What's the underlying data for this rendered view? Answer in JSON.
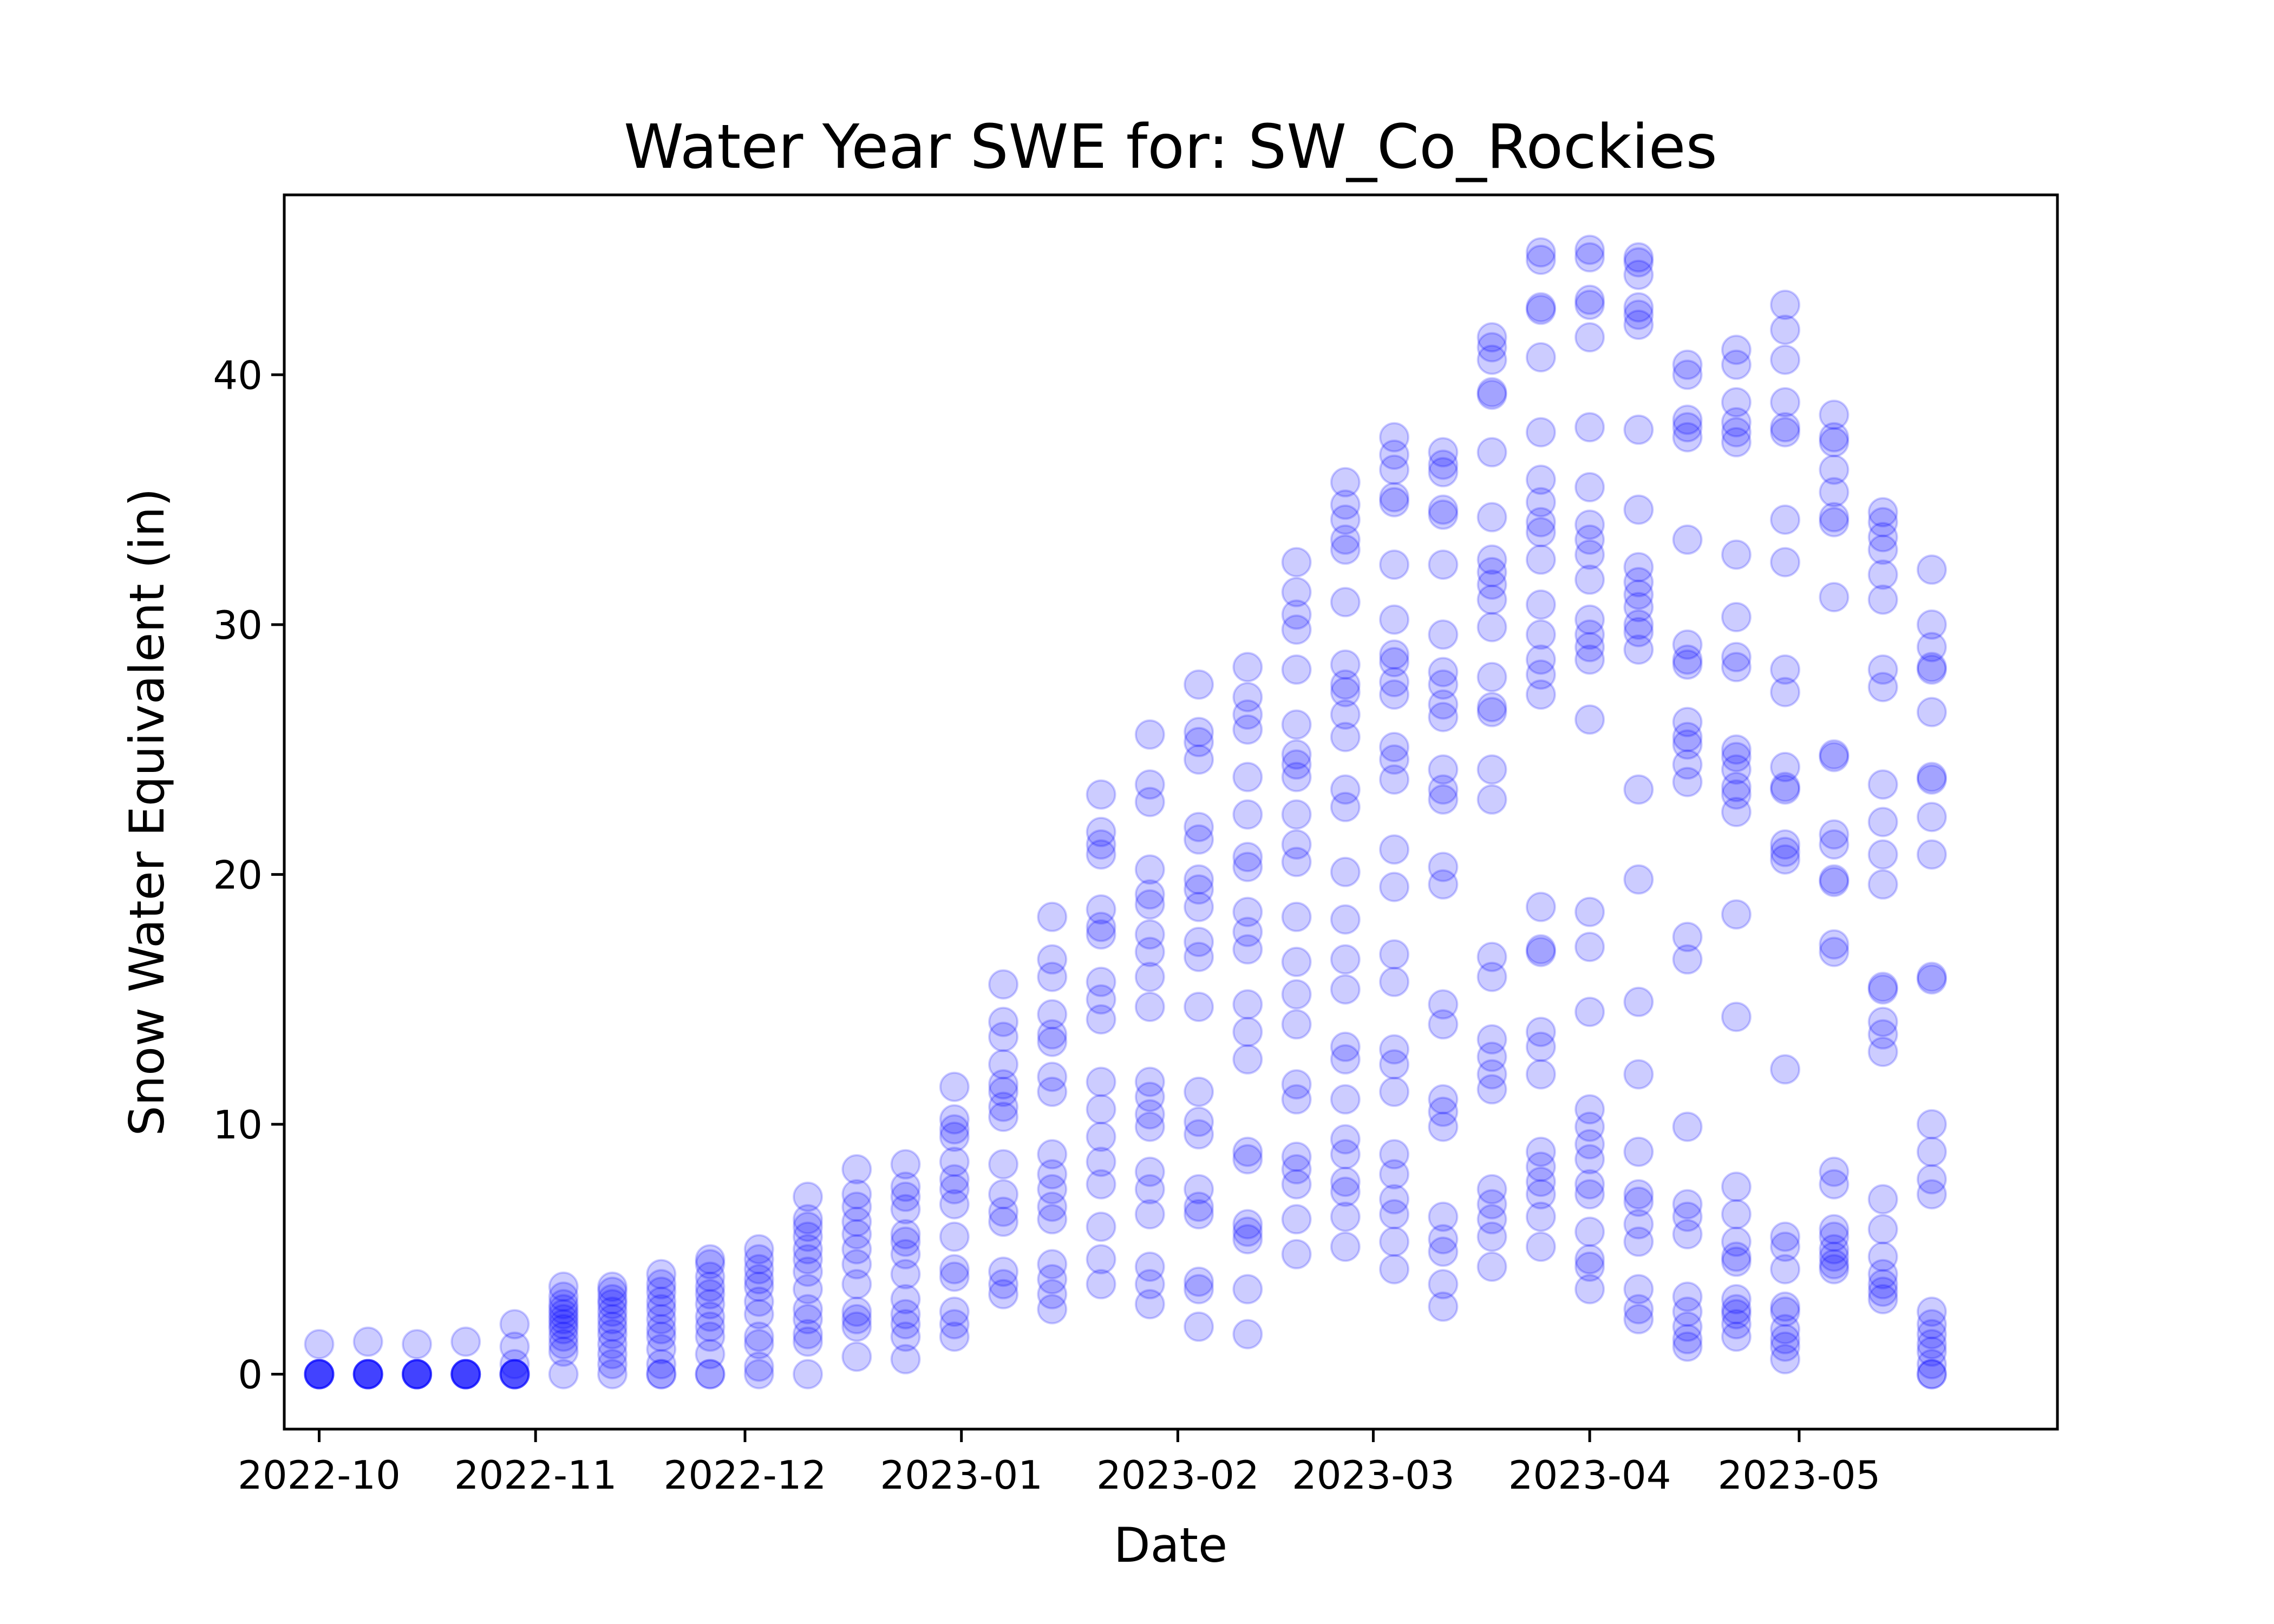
{
  "chart_data": {
    "type": "scatter",
    "title": "Water Year SWE for: SW_Co_Rockies",
    "xlabel": "Date",
    "ylabel": "Snow Water Equivalent (in)",
    "x_axis": "date",
    "xlim": [
      "2022-09-26",
      "2023-06-07"
    ],
    "ylim": [
      -2.2,
      47.2
    ],
    "x_ticks": [
      "2022-10",
      "2022-11",
      "2022-12",
      "2023-01",
      "2023-02",
      "2023-03",
      "2023-04",
      "2023-05"
    ],
    "x_tick_dates": [
      "2022-10-01",
      "2022-11-01",
      "2022-12-01",
      "2023-01-01",
      "2023-02-01",
      "2023-03-01",
      "2023-04-01",
      "2023-05-01"
    ],
    "y_ticks": [
      0,
      10,
      20,
      30,
      40
    ],
    "grid": false,
    "legend": "none",
    "marker_color": "#0000ff",
    "marker_alpha": 0.2,
    "series": [
      {
        "points": [
          {
            "x": "2022-10-01",
            "y": [
              0,
              0,
              0,
              0,
              0,
              0,
              1.2
            ]
          },
          {
            "x": "2022-10-08",
            "y": [
              0,
              0,
              0,
              0,
              0,
              0,
              1.3
            ]
          },
          {
            "x": "2022-10-15",
            "y": [
              0,
              0,
              0,
              0,
              0,
              0,
              1.2
            ]
          },
          {
            "x": "2022-10-22",
            "y": [
              0,
              0,
              0,
              0,
              0,
              0,
              1.3
            ]
          },
          {
            "x": "2022-10-29",
            "y": [
              0,
              0,
              0,
              0,
              0,
              0.4,
              1.1,
              2.0
            ]
          },
          {
            "x": "2022-11-05",
            "y": [
              0,
              0.9,
              1.2,
              1.5,
              1.8,
              2.0,
              2.2,
              2.4,
              2.6,
              2.8,
              3.1,
              3.5
            ]
          },
          {
            "x": "2022-11-12",
            "y": [
              0,
              0.4,
              0.8,
              1.2,
              1.6,
              1.9,
              2.2,
              2.5,
              2.8,
              3.0,
              3.3,
              3.5
            ]
          },
          {
            "x": "2022-11-19",
            "y": [
              0,
              0,
              0.4,
              1.0,
              1.5,
              1.8,
              2.2,
              2.6,
              2.9,
              3.3,
              3.6,
              4.0
            ]
          },
          {
            "x": "2022-11-26",
            "y": [
              0,
              0,
              0.8,
              1.5,
              1.9,
              2.3,
              2.8,
              3.2,
              3.5,
              3.9,
              4.4,
              4.6
            ]
          },
          {
            "x": "2022-12-03",
            "y": [
              0,
              0.3,
              1.2,
              1.5,
              2.4,
              2.9,
              3.5,
              3.8,
              4.2,
              4.6,
              5.0
            ]
          },
          {
            "x": "2022-12-10",
            "y": [
              0,
              1.3,
              1.6,
              2.2,
              2.6,
              3.4,
              4.1,
              4.6,
              5.0,
              5.5,
              5.9,
              6.2,
              7.1
            ]
          },
          {
            "x": "2022-12-17",
            "y": [
              0.7,
              1.9,
              2.2,
              2.5,
              3.6,
              4.4,
              5.0,
              5.6,
              6.1,
              6.7,
              7.2,
              8.2
            ]
          },
          {
            "x": "2022-12-24",
            "y": [
              0.6,
              1.5,
              2.0,
              2.4,
              3.0,
              4.0,
              4.8,
              5.3,
              5.6,
              6.6,
              7.1,
              7.5,
              8.4
            ]
          },
          {
            "x": "2022-12-31",
            "y": [
              1.5,
              2.0,
              2.5,
              3.9,
              4.2,
              5.5,
              6.8,
              7.4,
              7.8,
              8.5,
              9.5,
              9.8,
              10.2,
              11.5
            ]
          },
          {
            "x": "2023-01-07",
            "y": [
              3.2,
              3.6,
              4.1,
              6.1,
              6.5,
              7.2,
              8.4,
              10.3,
              10.7,
              11.3,
              11.6,
              12.4,
              13.5,
              14.1,
              15.6
            ]
          },
          {
            "x": "2023-01-14",
            "y": [
              2.6,
              3.2,
              3.8,
              4.4,
              6.2,
              6.7,
              7.4,
              8.0,
              8.8,
              11.3,
              11.9,
              13.3,
              13.6,
              14.4,
              15.9,
              16.6,
              18.3
            ]
          },
          {
            "x": "2023-01-21",
            "y": [
              3.6,
              4.6,
              5.9,
              7.6,
              8.5,
              9.5,
              10.6,
              11.7,
              14.2,
              15.0,
              15.7,
              17.6,
              17.9,
              18.6,
              20.8,
              21.2,
              21.7,
              23.2
            ]
          },
          {
            "x": "2023-01-28",
            "y": [
              2.8,
              3.6,
              4.3,
              6.4,
              7.4,
              8.1,
              9.9,
              10.4,
              11.1,
              11.7,
              14.7,
              15.9,
              16.9,
              17.6,
              18.8,
              19.2,
              20.2,
              22.9,
              23.6,
              25.6
            ]
          },
          {
            "x": "2023-02-04",
            "y": [
              1.9,
              3.4,
              3.7,
              6.4,
              6.7,
              7.4,
              9.6,
              10.1,
              11.3,
              14.7,
              16.7,
              17.3,
              18.7,
              19.4,
              19.8,
              21.4,
              21.9,
              24.6,
              25.3,
              25.7,
              27.6
            ]
          },
          {
            "x": "2023-02-11",
            "y": [
              1.6,
              3.4,
              5.4,
              5.7,
              6.0,
              8.6,
              8.9,
              12.6,
              13.7,
              14.8,
              17.0,
              17.7,
              18.5,
              20.3,
              20.7,
              22.4,
              23.9,
              25.8,
              26.4,
              27.1,
              28.3
            ]
          },
          {
            "x": "2023-02-18",
            "y": [
              4.8,
              6.2,
              7.6,
              8.2,
              8.7,
              11.0,
              11.6,
              14.0,
              15.2,
              16.5,
              18.3,
              20.5,
              21.2,
              22.4,
              23.9,
              24.4,
              24.8,
              26.0,
              28.2,
              29.8,
              30.4,
              31.3,
              32.5
            ]
          },
          {
            "x": "2023-02-25",
            "y": [
              5.1,
              6.3,
              7.3,
              7.7,
              8.8,
              9.4,
              11.0,
              12.6,
              13.1,
              15.4,
              16.6,
              18.2,
              20.1,
              22.7,
              23.4,
              25.5,
              26.4,
              27.3,
              27.6,
              28.4,
              30.9,
              33.0,
              33.4,
              34.2,
              34.8,
              35.7
            ]
          },
          {
            "x": "2023-03-04",
            "y": [
              4.2,
              5.3,
              6.4,
              7.0,
              8.0,
              8.8,
              11.3,
              12.4,
              13.0,
              15.7,
              16.8,
              19.5,
              21.0,
              23.8,
              24.6,
              25.1,
              27.2,
              27.7,
              28.5,
              28.8,
              30.2,
              32.4,
              34.9,
              35.1,
              36.2,
              36.8,
              37.5
            ]
          },
          {
            "x": "2023-03-11",
            "y": [
              2.7,
              3.6,
              4.9,
              5.4,
              6.3,
              9.9,
              10.5,
              11.0,
              14.0,
              14.8,
              19.6,
              20.3,
              23.0,
              23.4,
              24.2,
              26.3,
              26.8,
              27.6,
              28.1,
              29.6,
              32.4,
              34.4,
              34.6,
              36.1,
              36.4,
              36.9
            ]
          },
          {
            "x": "2023-03-18",
            "y": [
              4.3,
              5.5,
              6.2,
              6.8,
              7.4,
              11.4,
              12.0,
              12.7,
              13.4,
              15.9,
              16.7,
              23.0,
              24.2,
              26.5,
              26.7,
              27.9,
              29.9,
              31.0,
              31.6,
              32.1,
              32.6,
              34.3,
              36.9,
              39.2,
              39.3,
              40.6,
              41.1,
              41.5
            ]
          },
          {
            "x": "2023-03-25",
            "y": [
              5.1,
              6.3,
              7.2,
              7.7,
              8.3,
              8.9,
              12.0,
              13.1,
              13.7,
              16.9,
              17.0,
              18.7,
              27.2,
              28.0,
              28.6,
              29.6,
              30.8,
              32.6,
              33.7,
              34.1,
              34.9,
              35.8,
              37.7,
              40.7,
              42.6,
              42.7,
              44.6,
              44.9
            ]
          },
          {
            "x": "2023-04-01",
            "y": [
              3.4,
              4.3,
              4.6,
              5.7,
              7.2,
              7.6,
              8.6,
              9.2,
              9.9,
              10.6,
              14.5,
              17.1,
              18.5,
              26.2,
              28.6,
              29.1,
              29.6,
              30.2,
              31.8,
              32.8,
              33.4,
              34.0,
              35.5,
              37.9,
              41.5,
              42.8,
              43.0,
              44.7,
              45.0
            ]
          },
          {
            "x": "2023-04-08",
            "y": [
              2.2,
              2.6,
              3.4,
              5.3,
              6.0,
              6.9,
              7.2,
              8.9,
              12.0,
              14.9,
              19.8,
              23.4,
              29.0,
              29.7,
              30.0,
              30.7,
              31.2,
              31.7,
              32.3,
              34.6,
              37.8,
              42.0,
              42.4,
              42.7,
              44.0,
              44.5,
              44.7
            ]
          },
          {
            "x": "2023-04-15",
            "y": [
              1.1,
              1.4,
              1.9,
              2.5,
              3.1,
              5.6,
              6.3,
              6.8,
              9.9,
              16.6,
              17.5,
              23.7,
              24.4,
              25.2,
              25.5,
              26.1,
              28.4,
              28.6,
              29.2,
              33.4,
              37.5,
              37.9,
              38.2,
              40.0,
              40.4
            ]
          },
          {
            "x": "2023-04-22",
            "y": [
              1.5,
              2.0,
              2.4,
              2.6,
              3.0,
              4.5,
              4.7,
              5.3,
              6.4,
              7.5,
              14.3,
              18.4,
              22.5,
              23.2,
              23.5,
              24.2,
              24.7,
              25.0,
              28.3,
              28.7,
              30.3,
              32.8,
              37.3,
              37.7,
              38.1,
              38.9,
              40.4,
              41.0
            ]
          },
          {
            "x": "2023-04-29",
            "y": [
              0.6,
              1.1,
              1.4,
              1.8,
              2.5,
              2.7,
              4.2,
              5.1,
              5.5,
              12.2,
              20.6,
              20.9,
              21.2,
              23.4,
              23.5,
              24.3,
              27.3,
              28.2,
              32.5,
              34.2,
              37.7,
              37.9,
              38.9,
              40.6,
              41.8,
              42.8
            ]
          },
          {
            "x": "2023-05-06",
            "y": [
              4.2,
              4.4,
              4.7,
              5.0,
              5.5,
              5.8,
              7.6,
              8.1,
              16.9,
              17.2,
              19.7,
              19.8,
              21.2,
              21.6,
              24.7,
              24.8,
              31.1,
              34.1,
              34.3,
              35.3,
              36.2,
              37.3,
              37.5,
              38.4
            ]
          },
          {
            "x": "2023-05-13",
            "y": [
              3.0,
              3.3,
              3.6,
              4.0,
              4.7,
              5.8,
              7.0,
              12.9,
              13.6,
              14.1,
              15.4,
              15.5,
              19.6,
              20.8,
              22.1,
              23.6,
              27.5,
              28.2,
              31.0,
              32.0,
              33.0,
              33.5,
              34.1,
              34.5
            ]
          },
          {
            "x": "2023-05-20",
            "y": [
              0,
              0,
              0.4,
              0.9,
              1.2,
              1.6,
              2.0,
              2.5,
              7.2,
              7.8,
              8.9,
              10.0,
              15.8,
              15.9,
              20.8,
              22.3,
              23.8,
              23.9,
              26.5,
              28.2,
              28.3,
              29.1,
              30.0,
              32.2
            ]
          }
        ]
      }
    ]
  }
}
